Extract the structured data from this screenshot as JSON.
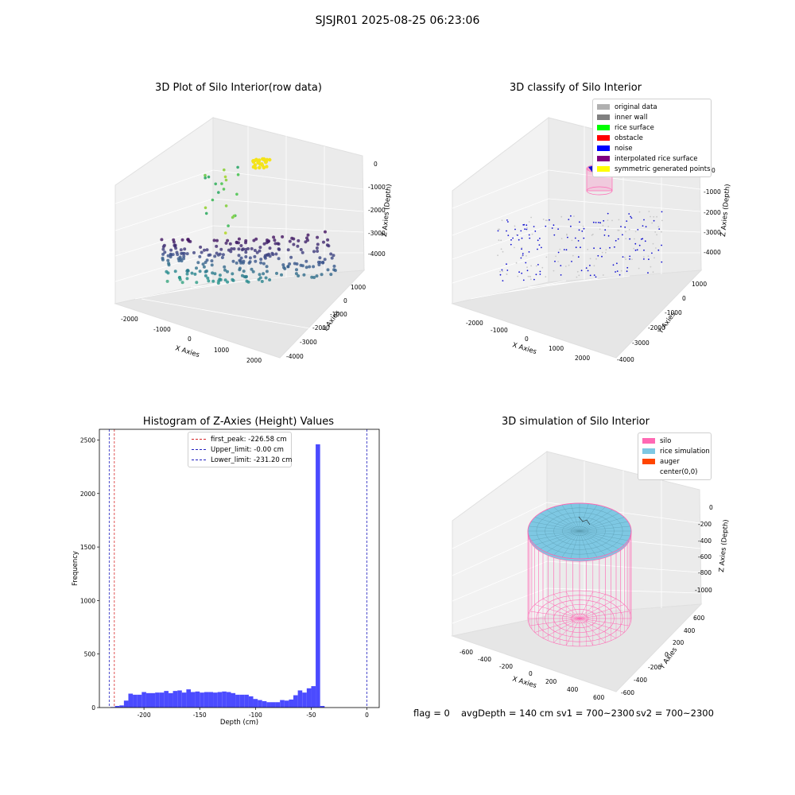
{
  "figure_title": "SJSJR01 2025-08-25 06:23:06",
  "status": {
    "flag": "flag = 0",
    "avg_depth": "avgDepth = 140 cm",
    "sv1": "sv1 = 700~2300",
    "sv2": "sv2 = 700~2300"
  },
  "colors": {
    "pane": "#f2f2f2",
    "histogram_bar": "#4b4bff",
    "peak_line": "#d62728",
    "limit_line": "#1f1fbf",
    "silo": "#ff69b4",
    "rice": "#7ec8e3",
    "auger": "#ff4500"
  },
  "chart_data": [
    {
      "type": "scatter",
      "title": "3D Plot of Silo Interior(row data)",
      "xlabel": "X Axies",
      "ylabel": "Y Axies",
      "zlabel": "Z Axies (Depth)",
      "x_ticks": [
        "-2000",
        "-1000",
        "0",
        "1000",
        "2000"
      ],
      "y_ticks": [
        "1000",
        "0",
        "-1000",
        "-2000",
        "-3000",
        "-4000"
      ],
      "z_ticks": [
        "0",
        "-1000",
        "-2000",
        "-3000",
        "-4000"
      ],
      "xlim": [
        -2300,
        2300
      ],
      "ylim": [
        -4500,
        1500
      ],
      "zlim": [
        -4500,
        300
      ],
      "colormap": "viridis (by depth)",
      "grid": true
    },
    {
      "type": "scatter",
      "title": "3D classify of Silo Interior",
      "xlabel": "X Axies",
      "ylabel": "Y Axies",
      "zlabel": "Z Axies (Depth)",
      "x_ticks": [
        "-2000",
        "-1000",
        "0",
        "1000",
        "2000"
      ],
      "y_ticks": [
        "1000",
        "0",
        "-1000",
        "-2000",
        "-3000",
        "-4000"
      ],
      "z_ticks": [
        "0",
        "-1000",
        "-2000",
        "-3000",
        "-4000"
      ],
      "legend_position": "top-right",
      "legend": [
        {
          "label": "original data",
          "color": "#b0b0b0"
        },
        {
          "label": "inner wall",
          "color": "#808080"
        },
        {
          "label": "rice surface",
          "color": "#00ff00"
        },
        {
          "label": "obstacle",
          "color": "#ff0000"
        },
        {
          "label": "noise",
          "color": "#0000ff"
        },
        {
          "label": "interpolated rice surface",
          "color": "#800080"
        },
        {
          "label": "symmetric generated points",
          "color": "#ffff00"
        }
      ],
      "grid": true
    },
    {
      "type": "bar",
      "title": "Histogram of Z-Axies (Height) Values",
      "xlabel": "Depth (cm)",
      "ylabel": "Frequency",
      "xlim": [
        -240,
        11
      ],
      "ylim": [
        0,
        2600
      ],
      "x_ticks": [
        -200,
        -150,
        -100,
        -50,
        0
      ],
      "y_ticks": [
        0,
        500,
        1000,
        1500,
        2000,
        2500
      ],
      "bin_start": -230,
      "bin_width": 4.0,
      "values": [
        5,
        15,
        20,
        65,
        130,
        120,
        120,
        145,
        135,
        135,
        140,
        140,
        155,
        135,
        155,
        160,
        140,
        170,
        145,
        150,
        140,
        145,
        145,
        140,
        145,
        150,
        145,
        135,
        120,
        120,
        120,
        105,
        80,
        70,
        60,
        50,
        50,
        50,
        70,
        65,
        75,
        115,
        160,
        140,
        180,
        200,
        2460,
        15
      ],
      "vlines": [
        {
          "label": "first_peak: -226.58 cm",
          "x": -226.58,
          "color": "#d62728"
        },
        {
          "label": "Upper_limit: -0.00 cm",
          "x": 0.0,
          "color": "#1f1fbf"
        },
        {
          "label": "Lower_limit: -231.20 cm",
          "x": -231.2,
          "color": "#1f1fbf"
        }
      ],
      "legend_position": "top-center"
    },
    {
      "type": "scatter",
      "title": "3D simulation of Silo Interior",
      "xlabel": "X Axies",
      "ylabel": "Y Axies",
      "zlabel": "Z Axies (Depth)",
      "x_ticks": [
        "-600",
        "-400",
        "-200",
        "0",
        "200",
        "400",
        "600"
      ],
      "y_ticks": [
        "600",
        "400",
        "200",
        "0",
        "-200",
        "-400",
        "-600"
      ],
      "z_ticks": [
        "0",
        "-200",
        "-400",
        "-600",
        "-800",
        "-1000"
      ],
      "legend_position": "top-right",
      "legend": [
        {
          "label": "silo",
          "color": "#ff69b4"
        },
        {
          "label": "rice simulation",
          "color": "#7ec8e3"
        },
        {
          "label": "auger",
          "color": "#ff4500"
        },
        {
          "label": "center(0,0)",
          "color": "#ffffff"
        }
      ],
      "grid": true
    }
  ]
}
